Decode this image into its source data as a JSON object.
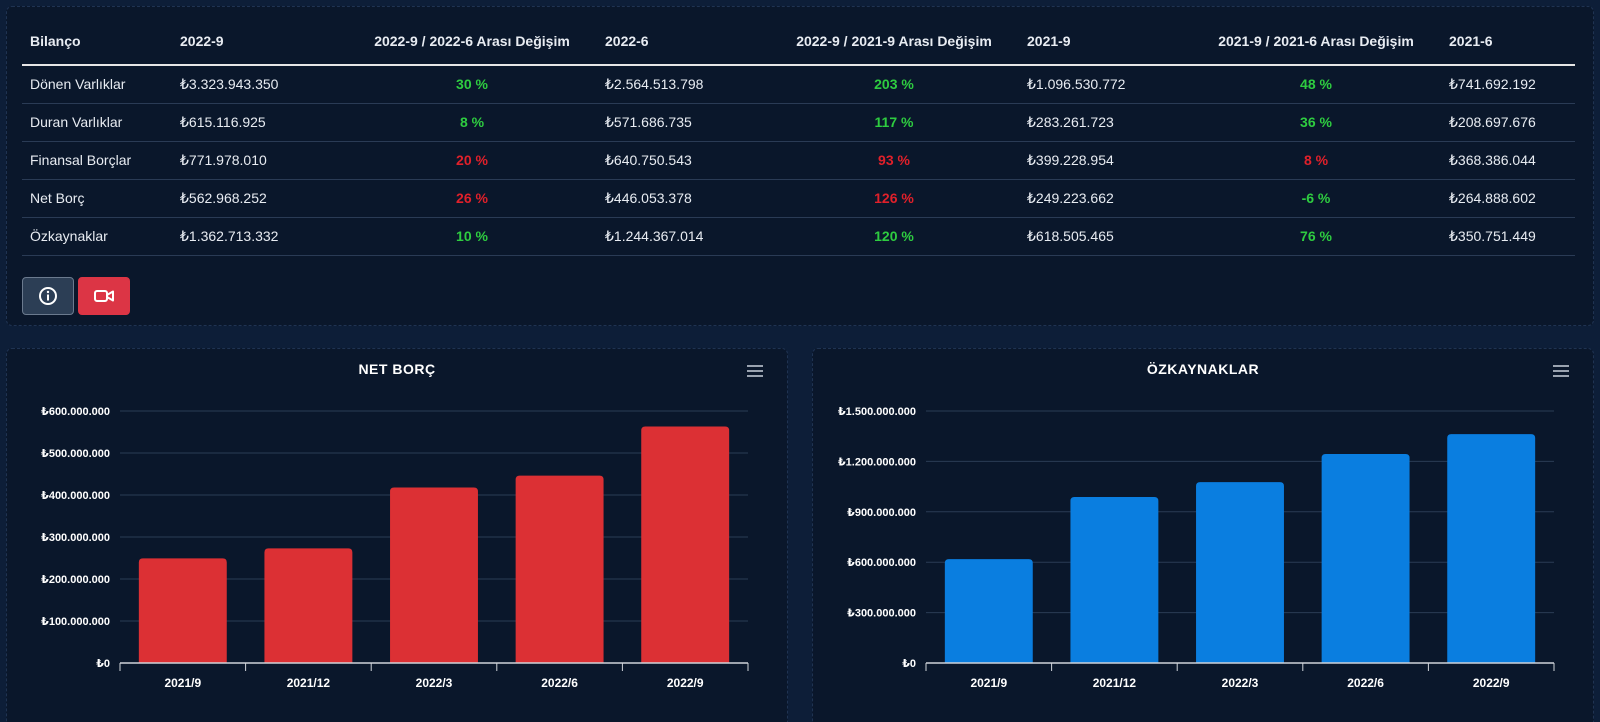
{
  "table": {
    "headers": [
      "Bilanço",
      "2022-9",
      "2022-9 / 2022-6 Arası Değişim",
      "2022-6",
      "2022-9 / 2021-9 Arası Değişim",
      "2021-9",
      "2021-9 / 2021-6 Arası Değişim",
      "2021-6"
    ],
    "rows": [
      {
        "name": "Dönen Varlıklar",
        "v1": "₺3.323.943.350",
        "c1": "30 %",
        "c1_dir": "up",
        "v2": "₺2.564.513.798",
        "c2": "203 %",
        "c2_dir": "up",
        "v3": "₺1.096.530.772",
        "c3": "48 %",
        "c3_dir": "up",
        "v4": "₺741.692.192"
      },
      {
        "name": "Duran Varlıklar",
        "v1": "₺615.116.925",
        "c1": "8 %",
        "c1_dir": "up",
        "v2": "₺571.686.735",
        "c2": "117 %",
        "c2_dir": "up",
        "v3": "₺283.261.723",
        "c3": "36 %",
        "c3_dir": "up",
        "v4": "₺208.697.676"
      },
      {
        "name": "Finansal Borçlar",
        "v1": "₺771.978.010",
        "c1": "20 %",
        "c1_dir": "down",
        "v2": "₺640.750.543",
        "c2": "93 %",
        "c2_dir": "down",
        "v3": "₺399.228.954",
        "c3": "8 %",
        "c3_dir": "down",
        "v4": "₺368.386.044"
      },
      {
        "name": "Net Borç",
        "v1": "₺562.968.252",
        "c1": "26 %",
        "c1_dir": "down",
        "v2": "₺446.053.378",
        "c2": "126 %",
        "c2_dir": "down",
        "v3": "₺249.223.662",
        "c3": "-6 %",
        "c3_dir": "up",
        "v4": "₺264.888.602"
      },
      {
        "name": "Özkaynaklar",
        "v1": "₺1.362.713.332",
        "c1": "10 %",
        "c1_dir": "up",
        "v2": "₺1.244.367.014",
        "c2": "120 %",
        "c2_dir": "up",
        "v3": "₺618.505.465",
        "c3": "76 %",
        "c3_dir": "up",
        "v4": "₺350.751.449"
      }
    ]
  },
  "buttons": {
    "info_icon": "info-circle-icon",
    "video_icon": "video-camera-icon"
  },
  "colors": {
    "positive": "#2ecc40",
    "negative": "#e0202a",
    "bar_red": "#dc3034",
    "bar_blue": "#0a7ee0",
    "video_button": "#dc3545"
  },
  "chart_data": [
    {
      "type": "bar",
      "title": "NET BORÇ",
      "categories": [
        "2021/9",
        "2021/12",
        "2022/3",
        "2022/6",
        "2022/9"
      ],
      "values": [
        249223662,
        273000000,
        418000000,
        446053378,
        562968252
      ],
      "yticks": [
        "₺0",
        "₺100.000.000",
        "₺200.000.000",
        "₺300.000.000",
        "₺400.000.000",
        "₺500.000.000",
        "₺600.000.000"
      ],
      "ylim": [
        0,
        600000000
      ],
      "grid": true,
      "color": "#dc3034"
    },
    {
      "type": "bar",
      "title": "ÖZKAYNAKLAR",
      "categories": [
        "2021/9",
        "2021/12",
        "2022/3",
        "2022/6",
        "2022/9"
      ],
      "values": [
        618505465,
        988000000,
        1077000000,
        1244367014,
        1362713332
      ],
      "yticks": [
        "₺0",
        "₺300.000.000",
        "₺600.000.000",
        "₺900.000.000",
        "₺1.200.000.000",
        "₺1.500.000.000"
      ],
      "ylim": [
        0,
        1500000000
      ],
      "grid": true,
      "color": "#0a7ee0"
    }
  ]
}
